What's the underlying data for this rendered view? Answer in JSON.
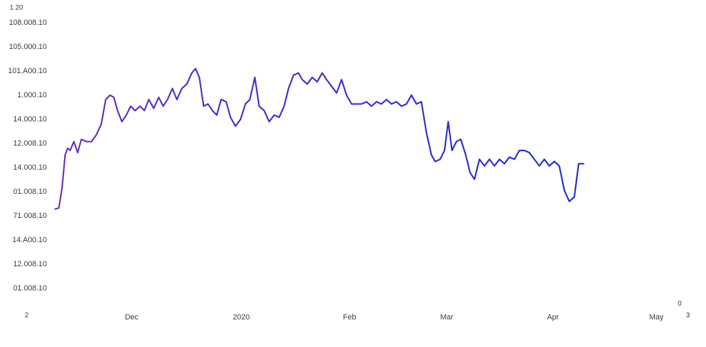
{
  "chart_data": {
    "type": "line",
    "title": "",
    "xlabel": "",
    "ylabel": "",
    "corner_labels": {
      "top_left": "1.20",
      "bottom_left": "2",
      "bottom_right": "3",
      "right_mark": "0"
    },
    "y_ticks": [
      "108.008.10",
      "105.000.10",
      "101.A00.10",
      "1.000.10",
      "14.000.10",
      "12.008.10",
      "14.000.10",
      "01.008.10",
      "71.008.10",
      "14.A00.10",
      "12.008.10",
      "01.008.10"
    ],
    "x_ticks": [
      "Dec",
      "2020",
      "Feb",
      "Mar",
      "Apr",
      "May"
    ],
    "ylim": [
      0,
      12
    ],
    "xlim": [
      0,
      100
    ],
    "line_colors": {
      "start": "#6a2fc0",
      "end": "#1530d8"
    },
    "grid": false,
    "legend": "none",
    "series": [
      {
        "values": [
          [
            0,
            3.55
          ],
          [
            0.6,
            3.6
          ],
          [
            1.1,
            4.5
          ],
          [
            1.6,
            6.0
          ],
          [
            2.0,
            6.3
          ],
          [
            2.4,
            6.2
          ],
          [
            3.0,
            6.6
          ],
          [
            3.6,
            6.1
          ],
          [
            4.2,
            6.7
          ],
          [
            5.0,
            6.6
          ],
          [
            5.8,
            6.6
          ],
          [
            6.6,
            6.9
          ],
          [
            7.4,
            7.4
          ],
          [
            8.1,
            8.5
          ],
          [
            8.8,
            8.7
          ],
          [
            9.4,
            8.6
          ],
          [
            10.0,
            8.0
          ],
          [
            10.7,
            7.5
          ],
          [
            11.4,
            7.8
          ],
          [
            12.1,
            8.2
          ],
          [
            12.8,
            8.0
          ],
          [
            13.6,
            8.2
          ],
          [
            14.3,
            8.0
          ],
          [
            15.0,
            8.5
          ],
          [
            15.8,
            8.1
          ],
          [
            16.6,
            8.6
          ],
          [
            17.3,
            8.2
          ],
          [
            18.0,
            8.5
          ],
          [
            18.8,
            9.0
          ],
          [
            19.5,
            8.5
          ],
          [
            20.3,
            9.0
          ],
          [
            21.1,
            9.2
          ],
          [
            21.9,
            9.7
          ],
          [
            22.5,
            9.9
          ],
          [
            23.1,
            9.5
          ],
          [
            23.8,
            8.2
          ],
          [
            24.5,
            8.3
          ],
          [
            25.2,
            8.0
          ],
          [
            25.9,
            7.8
          ],
          [
            26.6,
            8.5
          ],
          [
            27.4,
            8.4
          ],
          [
            28.1,
            7.7
          ],
          [
            28.9,
            7.3
          ],
          [
            29.7,
            7.6
          ],
          [
            30.5,
            8.3
          ],
          [
            31.2,
            8.5
          ],
          [
            32.0,
            9.5
          ],
          [
            32.7,
            8.2
          ],
          [
            33.5,
            8.0
          ],
          [
            34.3,
            7.5
          ],
          [
            35.1,
            7.8
          ],
          [
            35.9,
            7.7
          ],
          [
            36.7,
            8.2
          ],
          [
            37.4,
            9.0
          ],
          [
            38.2,
            9.6
          ],
          [
            39.0,
            9.7
          ],
          [
            39.6,
            9.4
          ],
          [
            40.4,
            9.2
          ],
          [
            41.2,
            9.5
          ],
          [
            42.0,
            9.3
          ],
          [
            42.8,
            9.7
          ],
          [
            43.5,
            9.4
          ],
          [
            44.3,
            9.1
          ],
          [
            45.1,
            8.8
          ],
          [
            45.9,
            9.4
          ],
          [
            46.7,
            8.7
          ],
          [
            47.5,
            8.3
          ],
          [
            48.3,
            8.3
          ],
          [
            49.1,
            8.3
          ],
          [
            49.9,
            8.4
          ],
          [
            50.7,
            8.2
          ],
          [
            51.5,
            8.4
          ],
          [
            52.3,
            8.3
          ],
          [
            53.1,
            8.5
          ],
          [
            53.9,
            8.3
          ],
          [
            54.7,
            8.4
          ],
          [
            55.5,
            8.2
          ],
          [
            56.3,
            8.3
          ],
          [
            57.1,
            8.7
          ],
          [
            57.9,
            8.3
          ],
          [
            58.7,
            8.4
          ],
          [
            59.5,
            7.0
          ],
          [
            60.3,
            6.0
          ],
          [
            60.9,
            5.7
          ],
          [
            61.7,
            5.8
          ],
          [
            62.4,
            6.2
          ],
          [
            63.0,
            7.5
          ],
          [
            63.6,
            6.2
          ],
          [
            64.3,
            6.6
          ],
          [
            65.0,
            6.7
          ],
          [
            65.8,
            6.0
          ],
          [
            66.5,
            5.2
          ],
          [
            67.2,
            4.9
          ],
          [
            68.0,
            5.8
          ],
          [
            68.8,
            5.5
          ],
          [
            69.6,
            5.8
          ],
          [
            70.4,
            5.5
          ],
          [
            71.2,
            5.8
          ],
          [
            72.0,
            5.6
          ],
          [
            72.8,
            5.9
          ],
          [
            73.6,
            5.8
          ],
          [
            74.4,
            6.2
          ],
          [
            75.2,
            6.2
          ],
          [
            76.0,
            6.1
          ],
          [
            76.8,
            5.8
          ],
          [
            77.6,
            5.5
          ],
          [
            78.4,
            5.8
          ],
          [
            79.2,
            5.5
          ],
          [
            80.0,
            5.7
          ],
          [
            80.8,
            5.5
          ],
          [
            81.6,
            4.4
          ],
          [
            82.4,
            3.9
          ],
          [
            83.2,
            4.1
          ],
          [
            83.9,
            5.6
          ],
          [
            84.7,
            5.6
          ]
        ]
      }
    ]
  }
}
